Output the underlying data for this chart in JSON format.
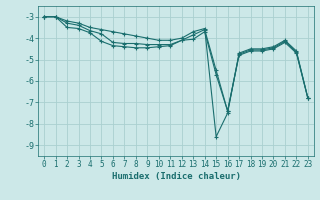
{
  "title": "",
  "xlabel": "Humidex (Indice chaleur)",
  "bg_color": "#cce8e8",
  "grid_color": "#aad0d0",
  "line_color": "#1a6e6e",
  "line1_y": [
    -3.0,
    -3.0,
    -3.2,
    -3.3,
    -3.5,
    -3.6,
    -3.7,
    -3.8,
    -3.9,
    -4.0,
    -4.1,
    -4.1,
    -4.0,
    -3.7,
    -3.55,
    -8.6,
    -7.5,
    -4.7,
    -4.5,
    -4.5,
    -4.4,
    -4.1,
    -4.6,
    -6.8
  ],
  "line2_y": [
    -3.0,
    -3.0,
    -3.3,
    -3.4,
    -3.65,
    -3.8,
    -4.2,
    -4.25,
    -4.25,
    -4.3,
    -4.3,
    -4.3,
    -4.1,
    -3.85,
    -3.6,
    -5.5,
    -7.4,
    -4.75,
    -4.55,
    -4.55,
    -4.45,
    -4.15,
    -4.65,
    -6.8
  ],
  "line3_y": [
    -3.0,
    -3.0,
    -3.5,
    -3.55,
    -3.75,
    -4.15,
    -4.35,
    -4.4,
    -4.45,
    -4.45,
    -4.4,
    -4.35,
    -4.1,
    -4.05,
    -3.7,
    -5.7,
    -7.4,
    -4.8,
    -4.6,
    -4.6,
    -4.5,
    -4.2,
    -4.7,
    -6.8
  ],
  "x": [
    0,
    1,
    2,
    3,
    4,
    5,
    6,
    7,
    8,
    9,
    10,
    11,
    12,
    13,
    14,
    15,
    16,
    17,
    18,
    19,
    20,
    21,
    22,
    23
  ],
  "ylim": [
    -9.5,
    -2.5
  ],
  "xlim": [
    -0.5,
    23.5
  ],
  "yticks": [
    -9,
    -8,
    -7,
    -6,
    -5,
    -4,
    -3
  ],
  "xticks": [
    0,
    1,
    2,
    3,
    4,
    5,
    6,
    7,
    8,
    9,
    10,
    11,
    12,
    13,
    14,
    15,
    16,
    17,
    18,
    19,
    20,
    21,
    22,
    23
  ],
  "xlabel_fontsize": 6.5,
  "tick_fontsize": 5.5,
  "lw": 0.8,
  "ms": 3.0
}
